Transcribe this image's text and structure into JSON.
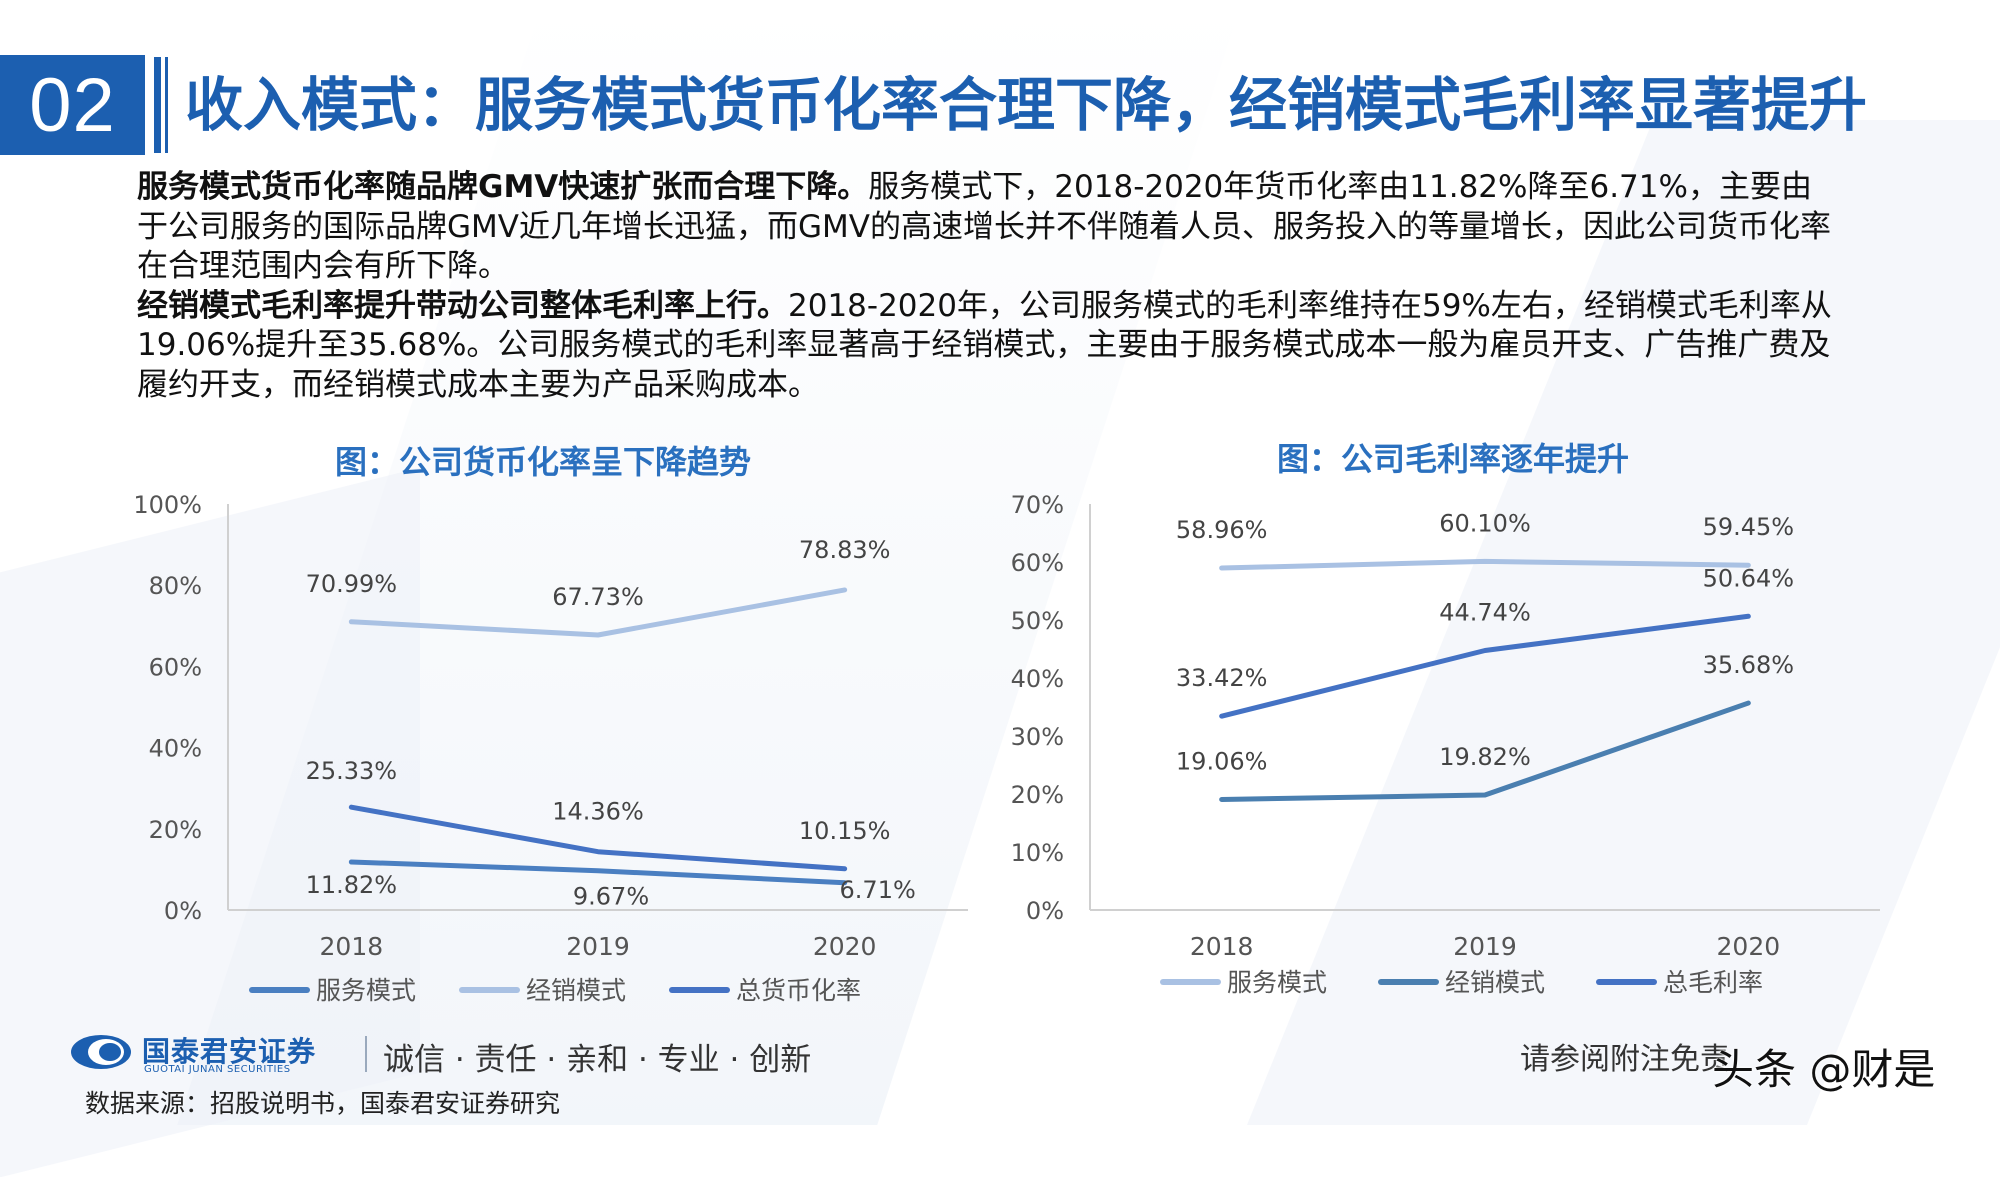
{
  "header": {
    "section_number": "02",
    "title": "收入模式：服务模式货币化率合理下降，经销模式毛利率显著提升"
  },
  "body": {
    "para1_bold": "服务模式货币化率随品牌GMV快速扩张而合理下降。",
    "para1_rest": "服务模式下，2018-2020年货币化率由11.82%降至6.71%，主要由于公司服务的国际品牌GMV近几年增长迅猛，而GMV的高速增长并不伴随着人员、服务投入的等量增长，因此公司货币化率在合理范围内会有所下降。",
    "para2_bold": "经销模式毛利率提升带动公司整体毛利率上行。",
    "para2_rest": "2018-2020年，公司服务模式的毛利率维持在59%左右，经销模式毛利率从19.06%提升至35.68%。公司服务模式的毛利率显著高于经销模式，主要由于服务模式成本一般为雇员开支、广告推广费及履约开支，而经销模式成本主要为产品采购成本。"
  },
  "chart_data": [
    {
      "type": "line",
      "title": "图：公司货币化率呈下降趋势",
      "categories": [
        "2018",
        "2019",
        "2020"
      ],
      "ylim": [
        0,
        100
      ],
      "yticks": [
        "0%",
        "20%",
        "40%",
        "60%",
        "80%",
        "100%"
      ],
      "grid": false,
      "legend_position": "bottom",
      "series": [
        {
          "name": "服务模式",
          "values": [
            11.82,
            9.67,
            6.71
          ],
          "labels": [
            "11.82%",
            "9.67%",
            "6.71%"
          ],
          "color": "#4a7fc1"
        },
        {
          "name": "经销模式",
          "values": [
            70.99,
            67.73,
            78.83
          ],
          "labels": [
            "70.99%",
            "67.73%",
            "78.83%"
          ],
          "color": "#a9c1e3"
        },
        {
          "name": "总货币化率",
          "values": [
            25.33,
            14.36,
            10.15
          ],
          "labels": [
            "25.33%",
            "14.36%",
            "10.15%"
          ],
          "color": "#4472c4"
        }
      ]
    },
    {
      "type": "line",
      "title": "图：公司毛利率逐年提升",
      "categories": [
        "2018",
        "2019",
        "2020"
      ],
      "ylim": [
        0,
        70
      ],
      "yticks": [
        "0%",
        "10%",
        "20%",
        "30%",
        "40%",
        "50%",
        "60%",
        "70%"
      ],
      "grid": false,
      "legend_position": "bottom",
      "series": [
        {
          "name": "服务模式",
          "values": [
            58.96,
            60.1,
            59.45
          ],
          "labels": [
            "58.96%",
            "60.10%",
            "59.45%"
          ],
          "color": "#a9c1e3"
        },
        {
          "name": "经销模式",
          "values": [
            19.06,
            19.82,
            35.68
          ],
          "labels": [
            "19.06%",
            "19.82%",
            "35.68%"
          ],
          "color": "#4a7fb0"
        },
        {
          "name": "总毛利率",
          "values": [
            33.42,
            44.74,
            50.64
          ],
          "labels": [
            "33.42%",
            "44.74%",
            "50.64%"
          ],
          "color": "#4472c4"
        }
      ]
    }
  ],
  "footer": {
    "company": "国泰君安证券",
    "company_en": "GUOTAI JUNAN SECURITIES",
    "slogan": "诚信 · 责任 · 亲和 · 专业 · 创新",
    "source": "数据来源：招股说明书，国泰君安证券研究",
    "disclaimer": "请参阅附注免责",
    "watermark": "头条 @财是"
  }
}
